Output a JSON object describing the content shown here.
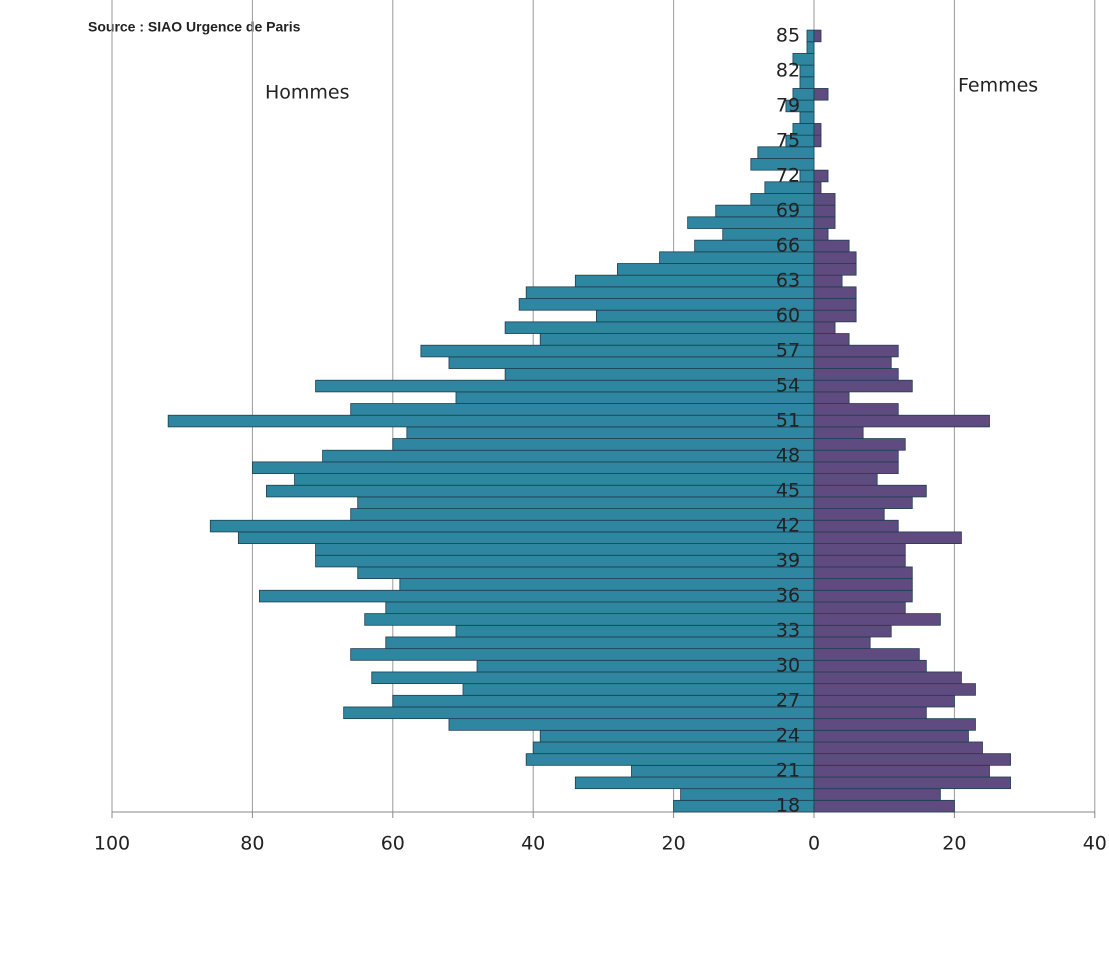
{
  "chart_data": {
    "type": "bar",
    "orientation": "horizontal",
    "annotation": "Source : SIAO Urgence de Paris",
    "categories": [
      "18",
      null,
      null,
      "21",
      null,
      null,
      "24",
      null,
      null,
      "27",
      null,
      null,
      "30",
      null,
      null,
      "33",
      null,
      null,
      "36",
      null,
      null,
      "39",
      null,
      null,
      "42",
      null,
      null,
      "45",
      null,
      null,
      "48",
      null,
      null,
      "51",
      null,
      null,
      "54",
      null,
      null,
      "57",
      null,
      null,
      "60",
      null,
      null,
      "63",
      null,
      null,
      "66",
      null,
      null,
      "69",
      null,
      null,
      "72",
      null,
      null,
      "75",
      null,
      null,
      "79",
      null,
      null,
      "82",
      null,
      null,
      "85"
    ],
    "series": [
      {
        "name": "Hommes",
        "color": "#2e86a0",
        "values": [
          -20,
          -19,
          -34,
          -26,
          -41,
          -40,
          -39,
          -52,
          -67,
          -60,
          -50,
          -63,
          -48,
          -66,
          -61,
          -51,
          -64,
          -61,
          -79,
          -59,
          -65,
          -71,
          -71,
          -82,
          -86,
          -66,
          -65,
          -78,
          -74,
          -80,
          -70,
          -60,
          -58,
          -92,
          -66,
          -51,
          -71,
          -44,
          -52,
          -56,
          -39,
          -44,
          -31,
          -42,
          -41,
          -34,
          -28,
          -22,
          -17,
          -13,
          -18,
          -14,
          -9,
          -7,
          -2,
          -9,
          -8,
          -4,
          -3,
          -2,
          -4,
          -3,
          -2,
          -2,
          -3,
          -1,
          -1
        ]
      },
      {
        "name": "Femmes",
        "color": "#5f4b80",
        "values": [
          20,
          18,
          28,
          25,
          28,
          24,
          22,
          23,
          16,
          20,
          23,
          21,
          16,
          15,
          8,
          11,
          18,
          13,
          14,
          14,
          14,
          13,
          13,
          21,
          12,
          10,
          14,
          16,
          9,
          12,
          12,
          13,
          7,
          25,
          12,
          5,
          14,
          12,
          11,
          12,
          5,
          3,
          6,
          6,
          6,
          4,
          6,
          6,
          5,
          2,
          3,
          3,
          3,
          1,
          2,
          0,
          0,
          1,
          1,
          0,
          0,
          2,
          0,
          0,
          0,
          0,
          1
        ]
      }
    ],
    "xlim": [
      -100,
      40
    ],
    "xticks": [
      {
        "value": -100,
        "label": "100"
      },
      {
        "value": -80,
        "label": "80"
      },
      {
        "value": -60,
        "label": "60"
      },
      {
        "value": -40,
        "label": "40"
      },
      {
        "value": -20,
        "label": "20"
      },
      0,
      20,
      40
    ],
    "grid": true
  }
}
